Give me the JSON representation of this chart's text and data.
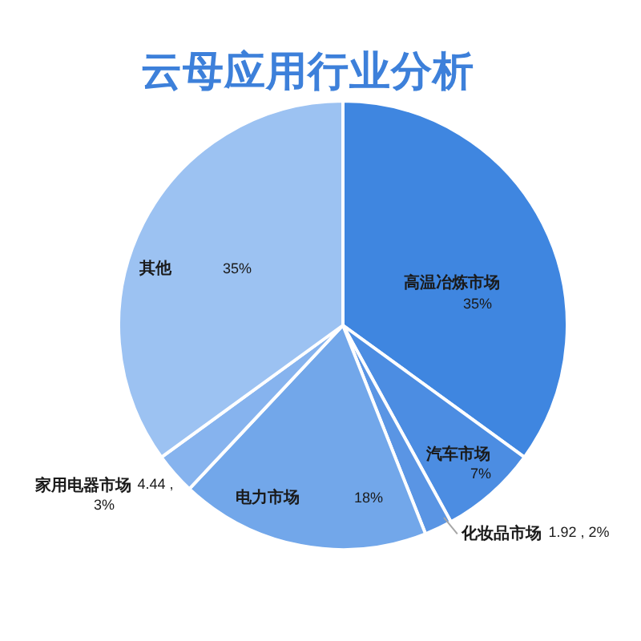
{
  "chart_data": {
    "type": "pie",
    "title": "云母应用行业分析",
    "categories": [
      "高温冶炼市场",
      "汽车市场",
      "化妆品市场",
      "电力市场",
      "家用电器市场",
      "其他"
    ],
    "values": [
      35,
      7,
      2,
      18,
      3,
      35
    ],
    "colors": [
      "#3f86e0",
      "#4c8de2",
      "#5a95e4",
      "#72a7ea",
      "#86b3ee",
      "#9cc2f2"
    ],
    "value_labels": [
      "35%",
      "7%",
      "1.92 , 2%",
      "18%",
      "4.44 , 3%",
      "35%"
    ]
  }
}
